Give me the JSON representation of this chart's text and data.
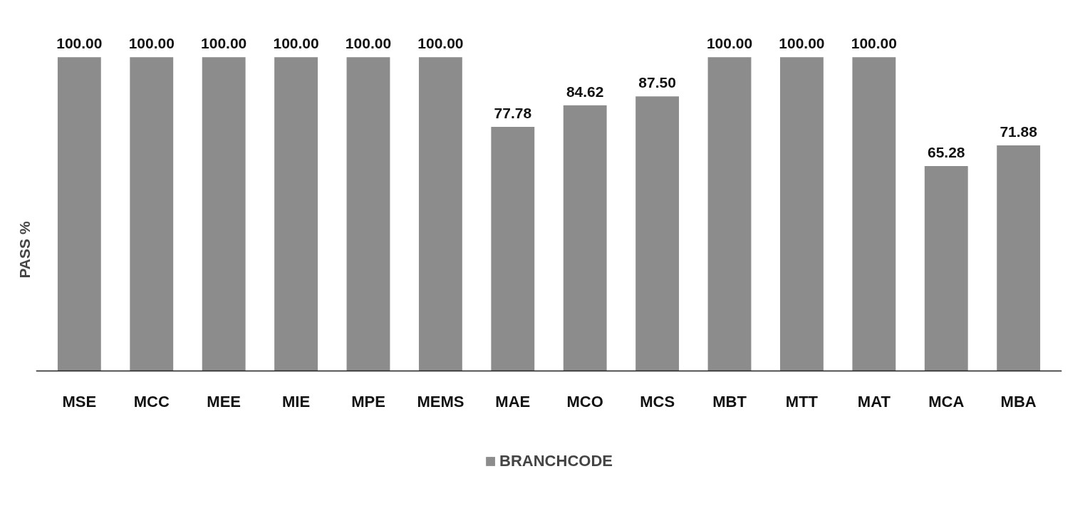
{
  "chart_data": {
    "type": "bar",
    "ylabel": "PASS %",
    "categories": [
      "MSE",
      "MCC",
      "MEE",
      "MIE",
      "MPE",
      "MEMS",
      "MAE",
      "MCO",
      "MCS",
      "MBT",
      "MTT",
      "MAT",
      "MCA",
      "MBA"
    ],
    "series": [
      {
        "name": "BRANCHCODE",
        "color": "#8c8c8c",
        "values": [
          100.0,
          100.0,
          100.0,
          100.0,
          100.0,
          100.0,
          77.78,
          84.62,
          87.5,
          100.0,
          100.0,
          100.0,
          65.28,
          71.88
        ],
        "value_labels": [
          "100.00",
          "100.00",
          "100.00",
          "100.00",
          "100.00",
          "100.00",
          "77.78",
          "84.62",
          "87.50",
          "100.00",
          "100.00",
          "100.00",
          "65.28",
          "71.88"
        ]
      }
    ],
    "legend": "bottom",
    "tick_labels": "x",
    "grid": false
  }
}
